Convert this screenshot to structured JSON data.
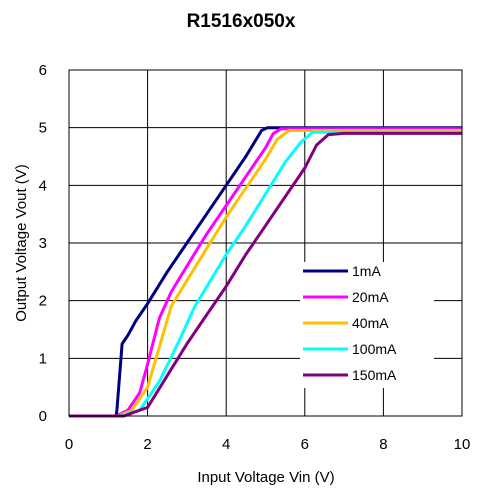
{
  "chart_data": {
    "type": "line",
    "title": "R1516x050x",
    "xlabel": "Input Voltage Vin (V)",
    "ylabel": "Output Voltage Vout (V)",
    "xlim": [
      0,
      10
    ],
    "ylim": [
      0,
      6
    ],
    "xticks": [
      "0",
      "2",
      "4",
      "6",
      "8",
      "10"
    ],
    "yticks": [
      "0",
      "1",
      "2",
      "3",
      "4",
      "5",
      "6"
    ],
    "grid": true,
    "legend_position": "bottom-right",
    "series": [
      {
        "name": "1mA",
        "color": "#000080",
        "x": [
          0,
          1.2,
          1.22,
          1.35,
          1.5,
          1.7,
          2.0,
          2.5,
          3.0,
          3.5,
          4.0,
          4.5,
          4.9,
          5.05,
          10
        ],
        "y": [
          0,
          0,
          0.1,
          1.25,
          1.4,
          1.65,
          1.95,
          2.5,
          3.0,
          3.5,
          4.0,
          4.5,
          4.95,
          5.0,
          5.0
        ]
      },
      {
        "name": "20mA",
        "color": "#ff00ff",
        "x": [
          0,
          1.2,
          1.5,
          1.8,
          2.0,
          2.3,
          2.6,
          3.0,
          3.5,
          4.0,
          4.5,
          5.0,
          5.2,
          5.4,
          10
        ],
        "y": [
          0,
          0,
          0.1,
          0.4,
          0.9,
          1.7,
          2.15,
          2.6,
          3.15,
          3.65,
          4.15,
          4.65,
          4.9,
          4.98,
          4.98
        ]
      },
      {
        "name": "40mA",
        "color": "#ffc000",
        "x": [
          0,
          1.25,
          1.6,
          2.0,
          2.3,
          2.6,
          3.0,
          3.5,
          4.0,
          4.5,
          5.0,
          5.3,
          5.6,
          10
        ],
        "y": [
          0,
          0,
          0.1,
          0.5,
          1.2,
          1.9,
          2.35,
          2.9,
          3.45,
          3.95,
          4.45,
          4.8,
          4.95,
          4.95
        ]
      },
      {
        "name": "100mA",
        "color": "#00ffff",
        "x": [
          0,
          1.3,
          1.8,
          2.3,
          2.8,
          3.2,
          3.6,
          4.0,
          4.5,
          5.0,
          5.5,
          5.9,
          6.2,
          10
        ],
        "y": [
          0,
          0,
          0.1,
          0.6,
          1.3,
          1.9,
          2.35,
          2.8,
          3.3,
          3.85,
          4.4,
          4.75,
          4.92,
          4.92
        ]
      },
      {
        "name": "150mA",
        "color": "#800080",
        "x": [
          0,
          1.4,
          2.0,
          2.5,
          3.0,
          3.5,
          4.0,
          4.5,
          5.0,
          5.5,
          6.0,
          6.3,
          6.6,
          7.0,
          10
        ],
        "y": [
          0,
          0,
          0.15,
          0.7,
          1.25,
          1.75,
          2.25,
          2.8,
          3.3,
          3.8,
          4.3,
          4.7,
          4.88,
          4.9,
          4.9
        ]
      }
    ]
  }
}
